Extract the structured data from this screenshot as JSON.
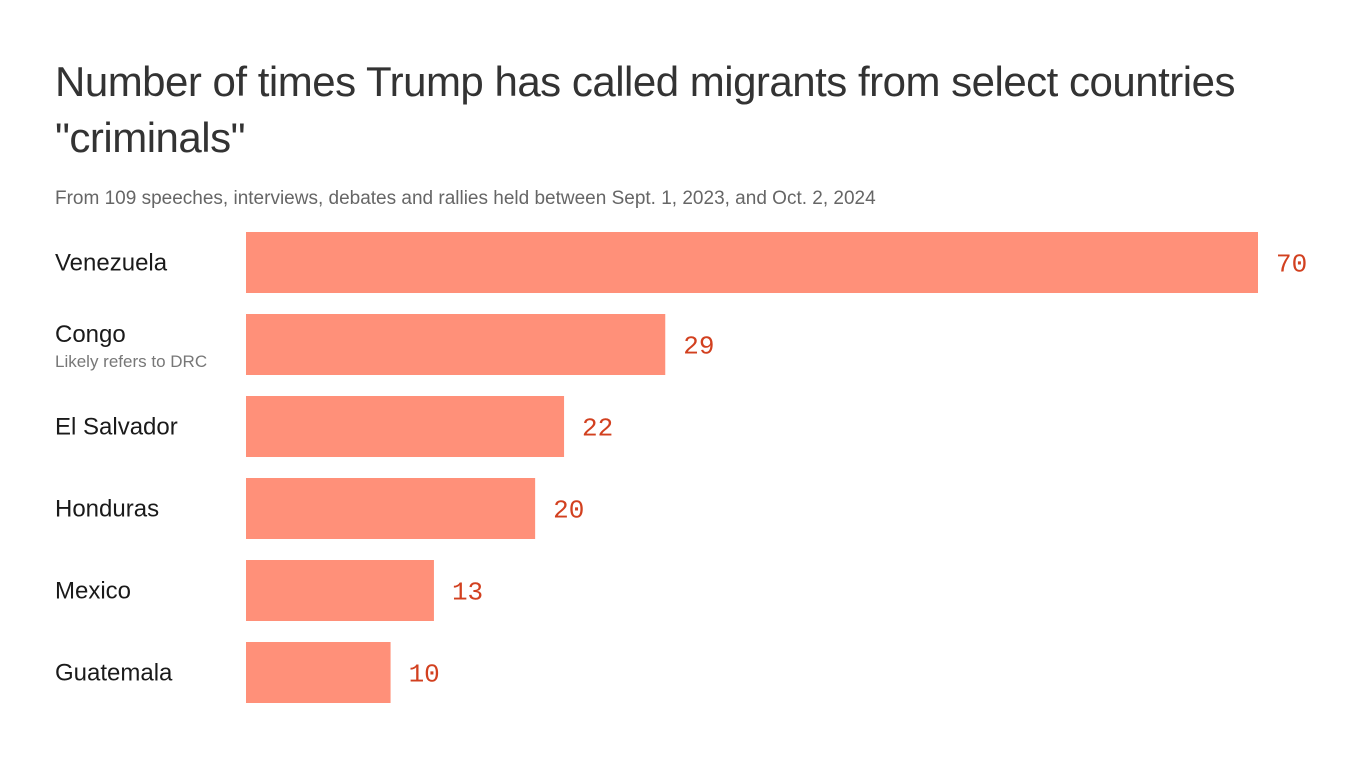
{
  "chart_data": {
    "type": "bar",
    "orientation": "horizontal",
    "title": "Number of times Trump has called migrants from select countries \"criminals\"",
    "subtitle": "From 109 speeches, interviews, debates and rallies held between Sept. 1, 2023, and Oct. 2, 2024",
    "categories": [
      "Venezuela",
      "Congo",
      "El Salvador",
      "Honduras",
      "Mexico",
      "Guatemala"
    ],
    "category_notes": [
      "",
      "Likely refers to DRC",
      "",
      "",
      "",
      ""
    ],
    "values": [
      70,
      29,
      22,
      20,
      13,
      10
    ],
    "xlim": [
      0,
      70
    ],
    "grid": false,
    "legend": "none",
    "bar_color": "#ff9079",
    "value_label_color": "#d2401f"
  }
}
